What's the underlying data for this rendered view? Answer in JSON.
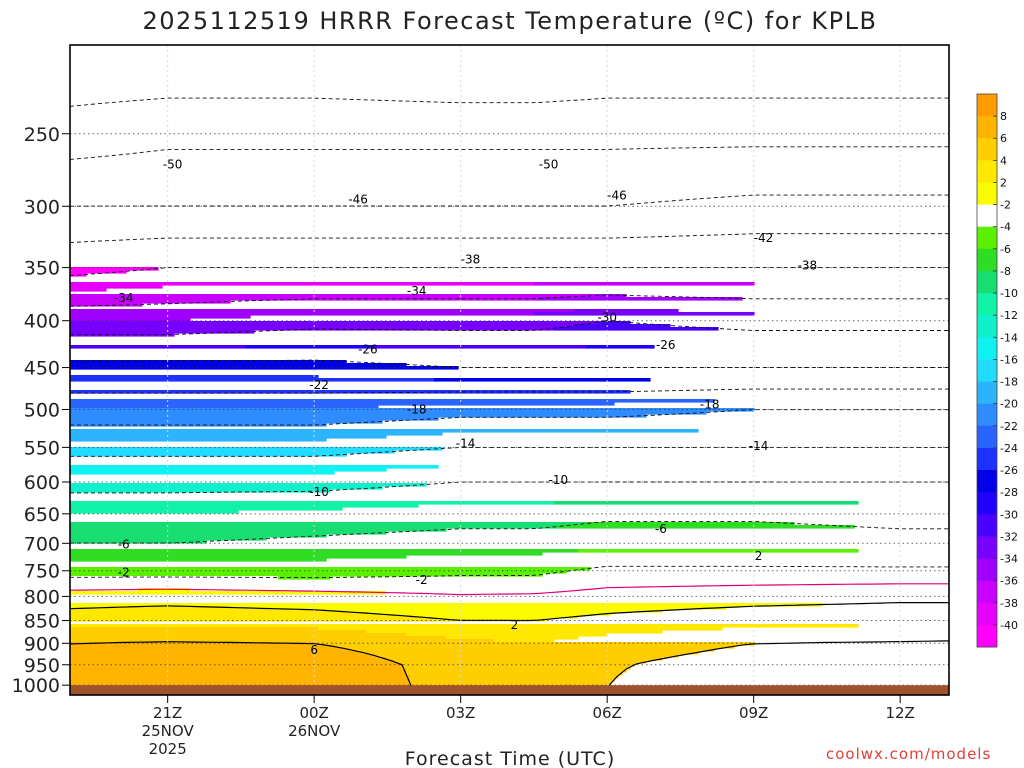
{
  "chart_data": {
    "type": "filled-contour",
    "title": "2025112519 HRRR Forecast Temperature (ºC) for KPLB",
    "xlabel": "Forecast Time (UTC)",
    "ylabel": "",
    "x_ticks": [
      {
        "hours": 2,
        "lines": [
          "21Z",
          "25NOV",
          "2025"
        ]
      },
      {
        "hours": 5,
        "lines": [
          "00Z",
          "26NOV"
        ]
      },
      {
        "hours": 8,
        "lines": [
          "03Z"
        ]
      },
      {
        "hours": 11,
        "lines": [
          "06Z"
        ]
      },
      {
        "hours": 14,
        "lines": [
          "09Z"
        ]
      },
      {
        "hours": 17,
        "lines": [
          "12Z"
        ]
      }
    ],
    "xlim_hours": [
      0,
      18
    ],
    "y_ticks": [
      "250",
      "300",
      "350",
      "400",
      "450",
      "500",
      "550",
      "600",
      "650",
      "700",
      "750",
      "800",
      "850",
      "900",
      "950",
      "1000"
    ],
    "y_tick_values": [
      250,
      300,
      350,
      400,
      450,
      500,
      550,
      600,
      650,
      700,
      750,
      800,
      850,
      900,
      950,
      1000
    ],
    "ylim_hPa": [
      1025,
      200
    ],
    "y_scale": "log-pressure",
    "surface_pressure_hPa": 1000,
    "temperature_profiles": {
      "x_hours": [
        0,
        2,
        5,
        8,
        9.5,
        11,
        14,
        17,
        18
      ],
      "pressure_levels_hPa": [
        200,
        250,
        300,
        350,
        400,
        450,
        500,
        550,
        600,
        650,
        700,
        750,
        800,
        850,
        900,
        950,
        1000
      ],
      "temperature_C": [
        [
          -58,
          -52,
          -46,
          -39,
          -32,
          -25,
          -20,
          -15,
          -11,
          -8,
          -6,
          -3,
          1,
          3,
          6,
          7,
          7.5
        ],
        [
          -58,
          -51,
          -46,
          -38,
          -32,
          -25,
          -20,
          -15,
          -11,
          -8,
          -6,
          -3,
          1.2,
          3.3,
          6.2,
          7.2,
          7.8
        ],
        [
          -58,
          -51,
          -46,
          -38,
          -31,
          -25,
          -20,
          -15,
          -11,
          -7.5,
          -5.5,
          -3,
          0.8,
          3,
          6,
          7.5,
          8
        ],
        [
          -59,
          -51,
          -46,
          -38,
          -31,
          -26,
          -19,
          -14,
          -10,
          -7,
          -5,
          -2.5,
          0.2,
          2,
          4.5,
          5,
          5
        ],
        [
          -59,
          -51,
          -46,
          -38,
          -31,
          -26,
          -19,
          -14,
          -10,
          -7,
          -5,
          -2.5,
          0.3,
          2,
          4,
          4,
          4
        ],
        [
          -58,
          -51,
          -46,
          -38,
          -30,
          -26,
          -19,
          -14,
          -10,
          -6.5,
          -4.5,
          -1.5,
          0.8,
          2.5,
          5,
          5.8,
          6
        ],
        [
          -58,
          -51,
          -45,
          -38,
          -31,
          -26,
          -18,
          -14,
          -10,
          -6.5,
          -4.5,
          -1.5,
          1.2,
          3.2,
          6,
          7,
          7.3
        ],
        [
          -58,
          -51,
          -45,
          -38,
          -31,
          -26,
          -18,
          -14,
          -10,
          -7,
          -5,
          -1.5,
          1.5,
          3.5,
          6.2,
          7.2,
          7.6
        ],
        [
          -58,
          -51,
          -45,
          -38,
          -31,
          -26,
          -18,
          -14,
          -10,
          -7,
          -5,
          -1.5,
          1.5,
          3.5,
          6.3,
          7.3,
          7.7
        ]
      ]
    },
    "colorbar": {
      "labels": [
        "8",
        "6",
        "4",
        "2",
        "-2",
        "-4",
        "-6",
        "-8",
        "-10",
        "-12",
        "-14",
        "-16",
        "-18",
        "-20",
        "-22",
        "-24",
        "-26",
        "-28",
        "-30",
        "-32",
        "-34",
        "-36",
        "-38",
        "-40"
      ],
      "colors": [
        "#ff9c00",
        "#ffb400",
        "#ffce00",
        "#ffe800",
        "#fafa00",
        "#ffffff",
        "#5af000",
        "#2edd24",
        "#18de72",
        "#0ff2a8",
        "#10f0cc",
        "#10f2f2",
        "#22dcff",
        "#2db4ff",
        "#2e8cff",
        "#2a64ff",
        "#1e32ff",
        "#0000e6",
        "#2000ff",
        "#4a00ff",
        "#7800ff",
        "#a000ff",
        "#c800ff",
        "#e800ff",
        "#ff00ff"
      ]
    },
    "contour_lines": {
      "dashed": [
        -2,
        -6,
        -10,
        -14,
        -18,
        -22,
        -26,
        -30,
        -34,
        -38,
        -42,
        -46,
        -50,
        -54
      ],
      "solid_black": [
        2,
        6
      ],
      "solid_magenta": [
        0
      ]
    },
    "contour_labels": [
      {
        "text": "-50",
        "hours": 2.1,
        "hPa": 270
      },
      {
        "text": "-50",
        "hours": 9.8,
        "hPa": 270
      },
      {
        "text": "-46",
        "hours": 5.9,
        "hPa": 295
      },
      {
        "text": "-46",
        "hours": 11.2,
        "hPa": 292
      },
      {
        "text": "-42",
        "hours": 14.2,
        "hPa": 325
      },
      {
        "text": "-38",
        "hours": 8.2,
        "hPa": 343
      },
      {
        "text": "-38",
        "hours": 15.1,
        "hPa": 348
      },
      {
        "text": "-34",
        "hours": 1.1,
        "hPa": 378
      },
      {
        "text": "-34",
        "hours": 7.1,
        "hPa": 371
      },
      {
        "text": "-30",
        "hours": 11.0,
        "hPa": 397
      },
      {
        "text": "-26",
        "hours": 6.1,
        "hPa": 430
      },
      {
        "text": "-26",
        "hours": 12.2,
        "hPa": 425
      },
      {
        "text": "-22",
        "hours": 5.1,
        "hPa": 470
      },
      {
        "text": "-18",
        "hours": 7.1,
        "hPa": 500
      },
      {
        "text": "-18",
        "hours": 13.1,
        "hPa": 494
      },
      {
        "text": "-14",
        "hours": 8.1,
        "hPa": 545
      },
      {
        "text": "-14",
        "hours": 14.1,
        "hPa": 548
      },
      {
        "text": "-10",
        "hours": 5.1,
        "hPa": 615
      },
      {
        "text": "-10",
        "hours": 10.0,
        "hPa": 597
      },
      {
        "text": "-6",
        "hours": 1.1,
        "hPa": 702
      },
      {
        "text": "-6",
        "hours": 12.1,
        "hPa": 675
      },
      {
        "text": "-2",
        "hours": 1.1,
        "hPa": 753
      },
      {
        "text": "-2",
        "hours": 7.2,
        "hPa": 768
      },
      {
        "text": "2",
        "hours": 14.1,
        "hPa": 723
      },
      {
        "text": "2",
        "hours": 9.1,
        "hPa": 860
      },
      {
        "text": "6",
        "hours": 5.0,
        "hPa": 915
      }
    ]
  },
  "credit": "coolwx.com/models"
}
